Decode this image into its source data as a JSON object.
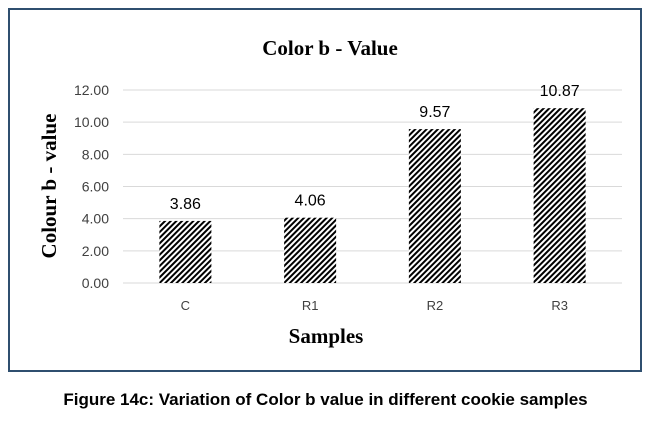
{
  "chart_data": {
    "type": "bar",
    "title": "Color b - Value",
    "xlabel": "Samples",
    "ylabel": "Colour b - value",
    "categories": [
      "C",
      "R1",
      "R2",
      "R3"
    ],
    "values": [
      3.86,
      4.06,
      9.57,
      10.87
    ],
    "data_labels": [
      "3.86",
      "4.06",
      "9.57",
      "10.87"
    ],
    "ylim": [
      0,
      12
    ],
    "yticks": [
      "0.00",
      "2.00",
      "4.00",
      "6.00",
      "8.00",
      "10.00",
      "12.00"
    ],
    "grid": true,
    "bar_pattern": "diagonal-hatch",
    "colors": {
      "bar_fill": "#000000",
      "grid": "#d9d9d9",
      "frame": "#2f4f6f"
    }
  },
  "caption": "Figure 14c: Variation of Color b value in different cookie samples"
}
